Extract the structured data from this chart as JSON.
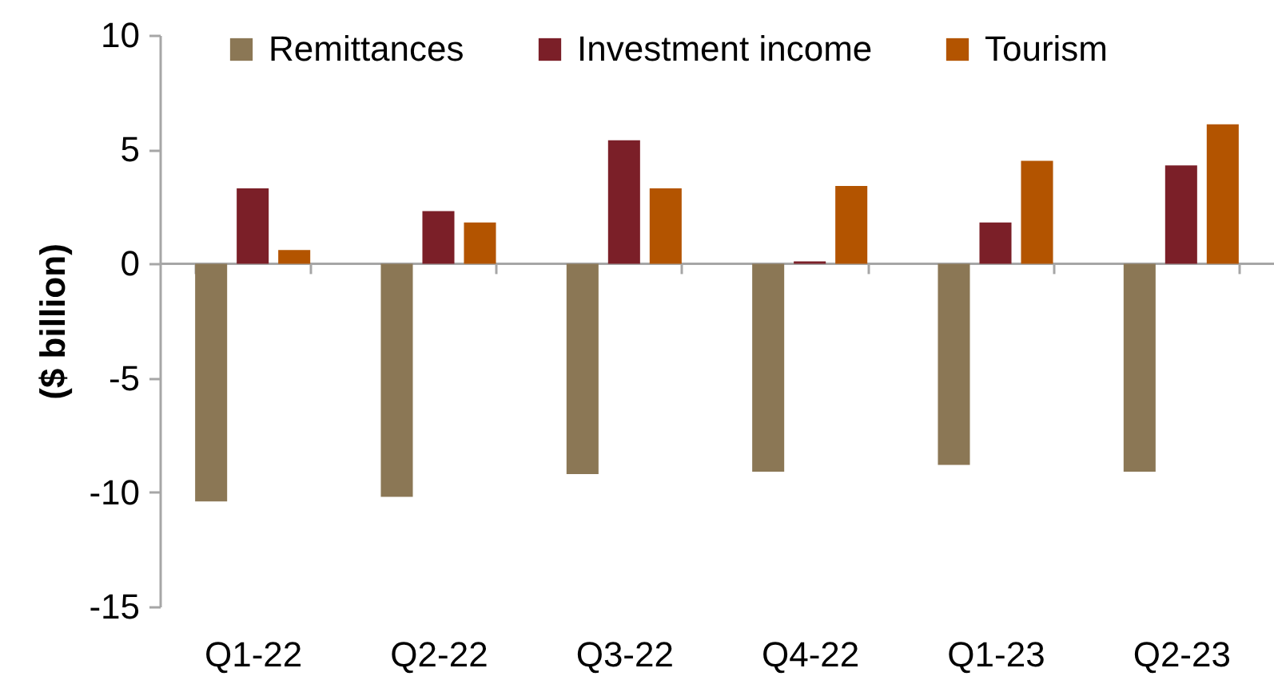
{
  "chart_data": {
    "type": "bar",
    "ylabel": "($ billion)",
    "categories": [
      "Q1-22",
      "Q2-22",
      "Q3-22",
      "Q4-22",
      "Q1-23",
      "Q2-23"
    ],
    "series": [
      {
        "name": "Remittances",
        "color": "#8b7755",
        "values": [
          -10.4,
          -10.2,
          -9.2,
          -9.1,
          -8.8,
          -9.1
        ]
      },
      {
        "name": "Investment income",
        "color": "#7b1f28",
        "values": [
          3.3,
          2.3,
          5.4,
          0.1,
          1.8,
          4.3
        ]
      },
      {
        "name": "Tourism",
        "color": "#b35400",
        "values": [
          0.6,
          1.8,
          3.3,
          3.4,
          4.5,
          6.1
        ]
      }
    ],
    "ylim": [
      -15,
      10
    ],
    "yticks": [
      -15,
      -10,
      -5,
      0,
      5,
      10
    ],
    "grid": false,
    "legend": "top",
    "ref_lines": [
      {
        "axis": "y",
        "value": 0,
        "color": "#a6a6a6"
      }
    ]
  }
}
